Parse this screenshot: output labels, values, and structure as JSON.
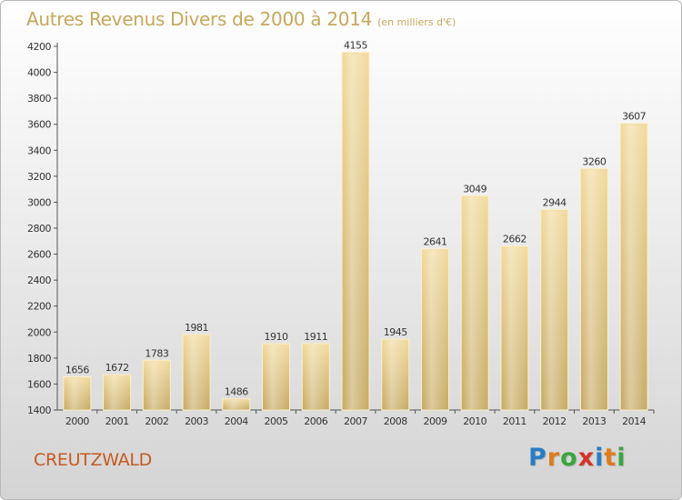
{
  "title": "Autres Revenus Divers de 2000 à 2014",
  "subtitle": "(en milliers d'€)",
  "location": "CREUTZWALD",
  "logo": {
    "text": "Proxiti",
    "letters": [
      "P",
      "r",
      "o",
      "x",
      "i",
      "t",
      "i"
    ],
    "colors": [
      "#2a7dc4",
      "#e07b1c",
      "#3aa640",
      "#d2342b",
      "#2a7dc4",
      "#e07b1c",
      "#3aa640"
    ]
  },
  "chart_data": {
    "type": "bar",
    "categories": [
      "2000",
      "2001",
      "2002",
      "2003",
      "2004",
      "2005",
      "2006",
      "2007",
      "2008",
      "2009",
      "2010",
      "2011",
      "2012",
      "2013",
      "2014"
    ],
    "values": [
      1656,
      1672,
      1783,
      1981,
      1486,
      1910,
      1911,
      4155,
      1945,
      2641,
      3049,
      2662,
      2944,
      3260,
      3607
    ],
    "ylim": [
      1400,
      4200
    ],
    "yticks": [
      1400,
      1600,
      1800,
      2000,
      2200,
      2400,
      2600,
      2800,
      3000,
      3200,
      3400,
      3600,
      3800,
      4000,
      4200
    ],
    "grid": false,
    "bar_color": "#e5c77e"
  }
}
